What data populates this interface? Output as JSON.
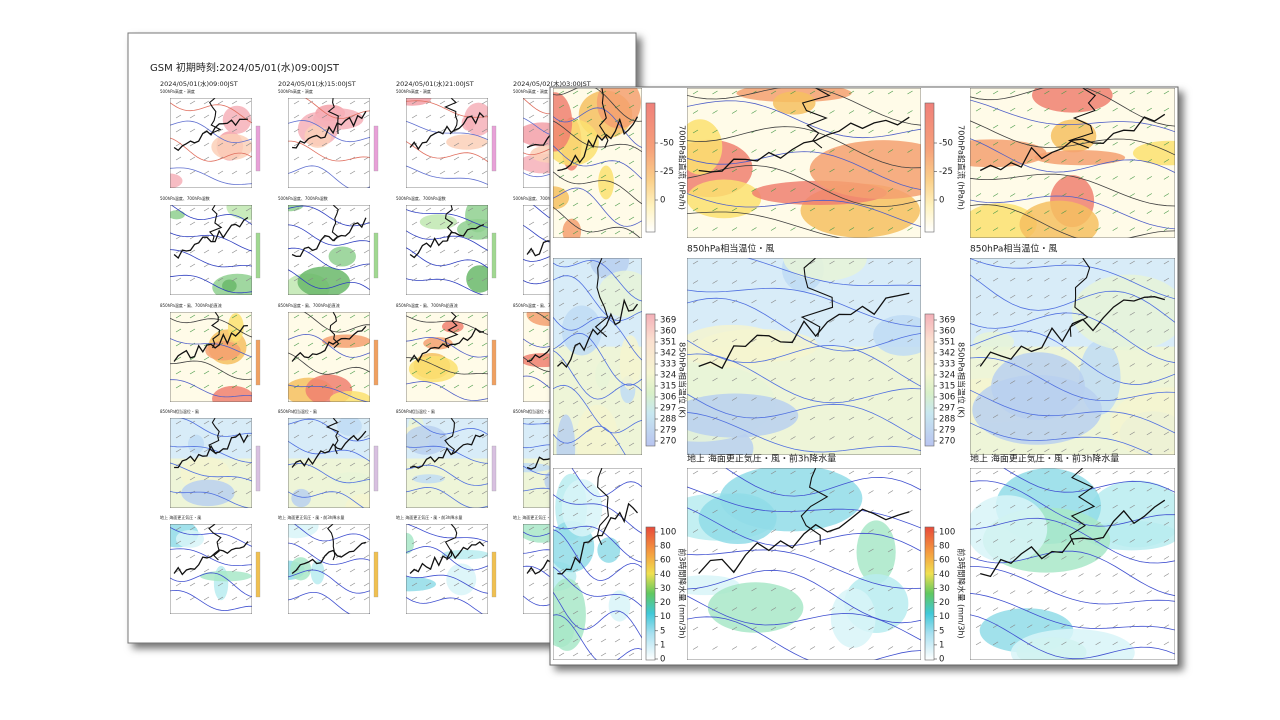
{
  "back_sheet": {
    "title": "GSM  初期時刻:2024/05/01(水)09:00JST",
    "columns": [
      "2024/05/01(水)09:00JST",
      "2024/05/01(水)15:00JST",
      "2024/05/01(水)21:00JST",
      "2024/05/02(木)03:00JST"
    ],
    "panel_labels": [
      [
        "500hPa高度・渦度",
        "500hPa高度・渦度",
        "500hPa高度・渦度",
        "500hPa高度・渦度"
      ],
      [
        "500hPa温度、700hPa湿数",
        "500hPa温度、700hPa湿数",
        "500hPa温度、700hPa湿数",
        "500hPa温度、700hPa湿数"
      ],
      [
        "850hPa温度・風、700hPa鉛直流",
        "850hPa温度・風、700hPa鉛直流",
        "850hPa温度・風、700hPa鉛直流",
        "850hPa温度・風、700hPa鉛直流"
      ],
      [
        "850hPa相当温位・風",
        "850hPa相当温位・風",
        "850hPa相当温位・風",
        "850hPa相当温位・風"
      ],
      [
        "地上 海面更正気圧・風",
        "地上 海面更正気圧・風・前3h降水量",
        "地上 海面更正気圧・風・前3h降水量",
        "地上 海面更正気圧・風・前3h降水量"
      ]
    ]
  },
  "front_sheet": {
    "rows": [
      {
        "colorbar": {
          "title": "700hPa鉛直流 (hPa/h)",
          "ticks": [
            -50,
            -25,
            0
          ]
        }
      },
      {
        "label": "850hPa相当温位・風",
        "colorbar": {
          "title": "850hPa相当温位 (K)",
          "ticks": [
            369,
            360,
            351,
            342,
            333,
            324,
            315,
            306,
            297,
            288,
            279,
            270
          ]
        }
      },
      {
        "label": "地上  海面更正気圧・風・前3h降水量",
        "colorbar": {
          "title": "前3時間降水量 (mm/3h)",
          "ticks": [
            100,
            80,
            60,
            40,
            30,
            20,
            10,
            5,
            1,
            0
          ]
        }
      }
    ]
  }
}
